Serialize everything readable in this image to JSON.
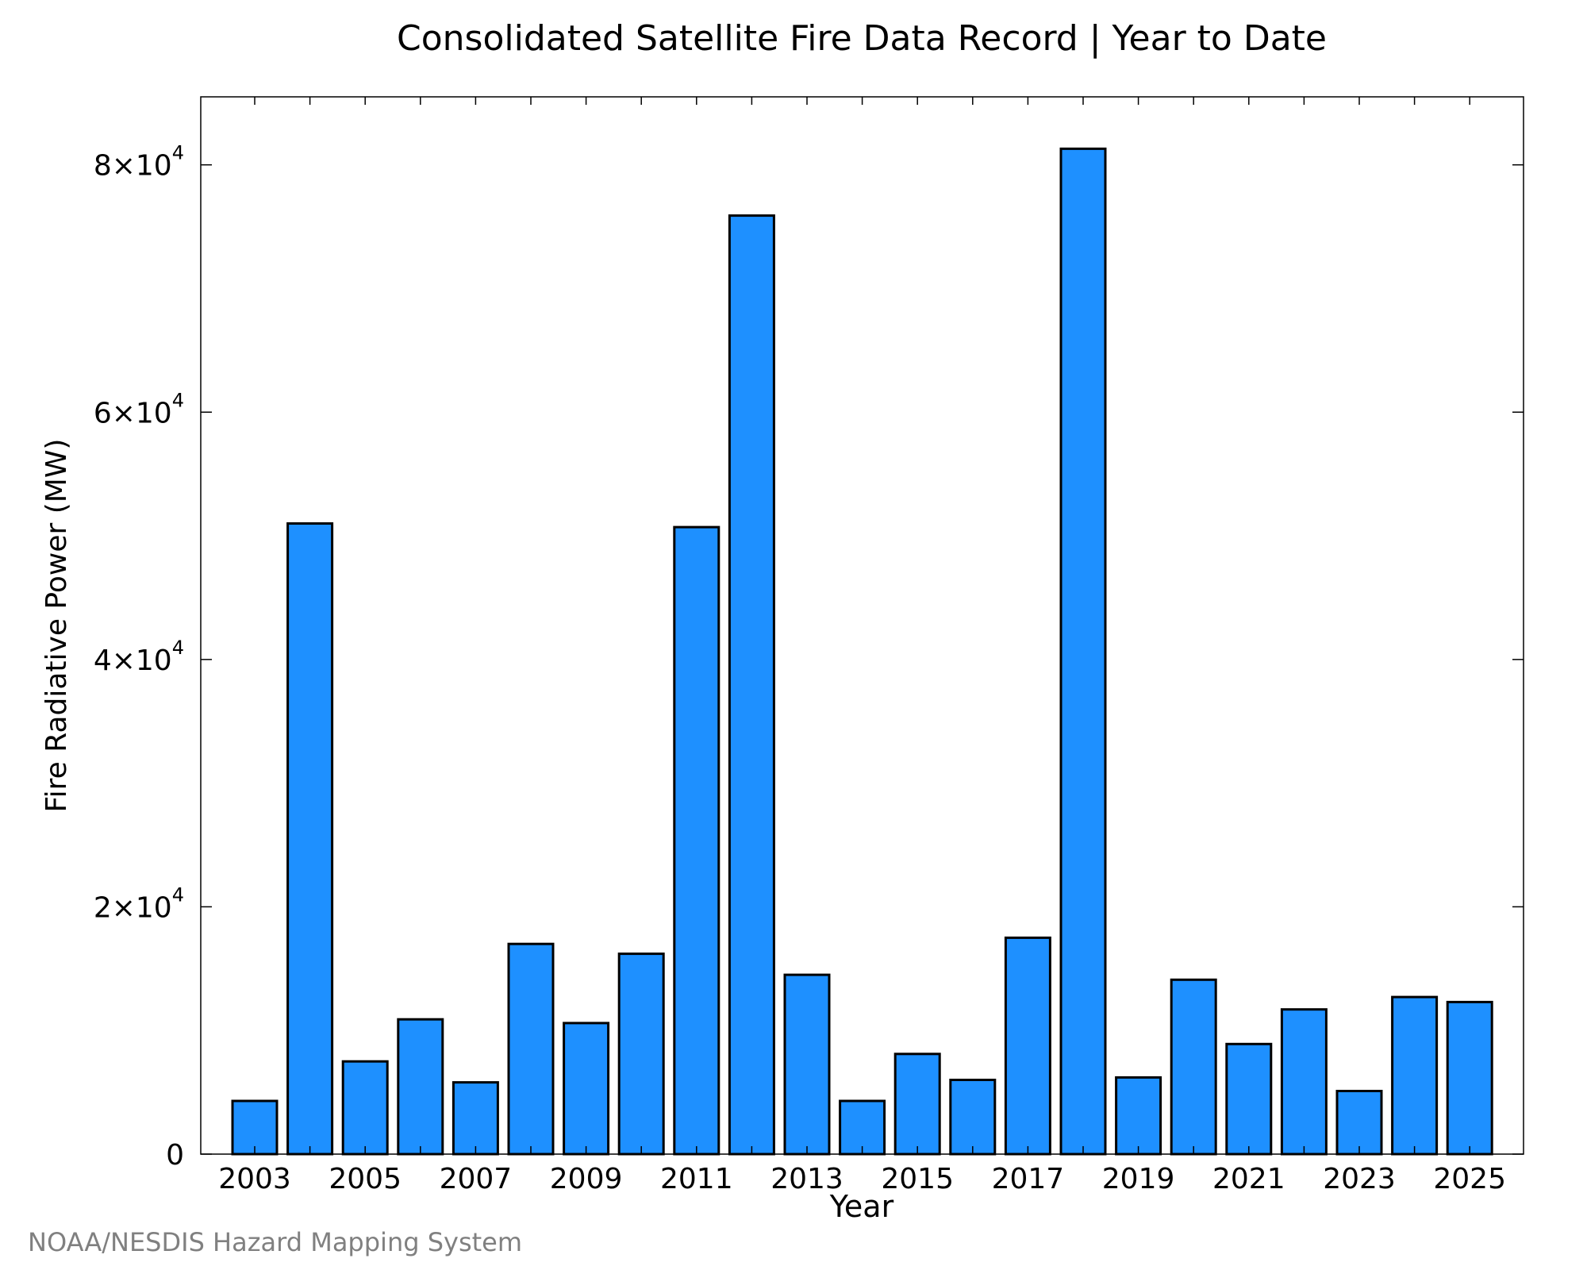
{
  "chart_data": {
    "type": "bar",
    "title": "Consolidated Satellite Fire Data Record | Year to Date",
    "xlabel": "Year",
    "ylabel": "Fire Radiative Power (MW)",
    "categories": [
      "2003",
      "2004",
      "2005",
      "2006",
      "2007",
      "2008",
      "2009",
      "2010",
      "2011",
      "2012",
      "2013",
      "2014",
      "2015",
      "2016",
      "2017",
      "2018",
      "2019",
      "2020",
      "2021",
      "2022",
      "2023",
      "2024",
      "2025"
    ],
    "values": [
      4300,
      51000,
      7500,
      10900,
      5800,
      17000,
      10600,
      16200,
      50700,
      75900,
      14500,
      4300,
      8100,
      6000,
      17500,
      81300,
      6200,
      14100,
      8900,
      11700,
      5100,
      12700,
      12300
    ],
    "x_tick_labels": [
      "2003",
      "2005",
      "2007",
      "2009",
      "2011",
      "2013",
      "2015",
      "2017",
      "2019",
      "2021",
      "2023",
      "2025"
    ],
    "y_ticks": [
      {
        "value": 0,
        "mantissa": "0",
        "exponent": ""
      },
      {
        "value": 20000,
        "mantissa": "2×10",
        "exponent": "4"
      },
      {
        "value": 40000,
        "mantissa": "4×10",
        "exponent": "4"
      },
      {
        "value": 60000,
        "mantissa": "6×10",
        "exponent": "4"
      },
      {
        "value": 80000,
        "mantissa": "8×10",
        "exponent": "4"
      }
    ],
    "ylim": [
      0,
      85500
    ],
    "grid": false,
    "bar_color": "#1e90ff",
    "edge_color": "#000000"
  },
  "credit": "NOAA/NESDIS Hazard Mapping System"
}
